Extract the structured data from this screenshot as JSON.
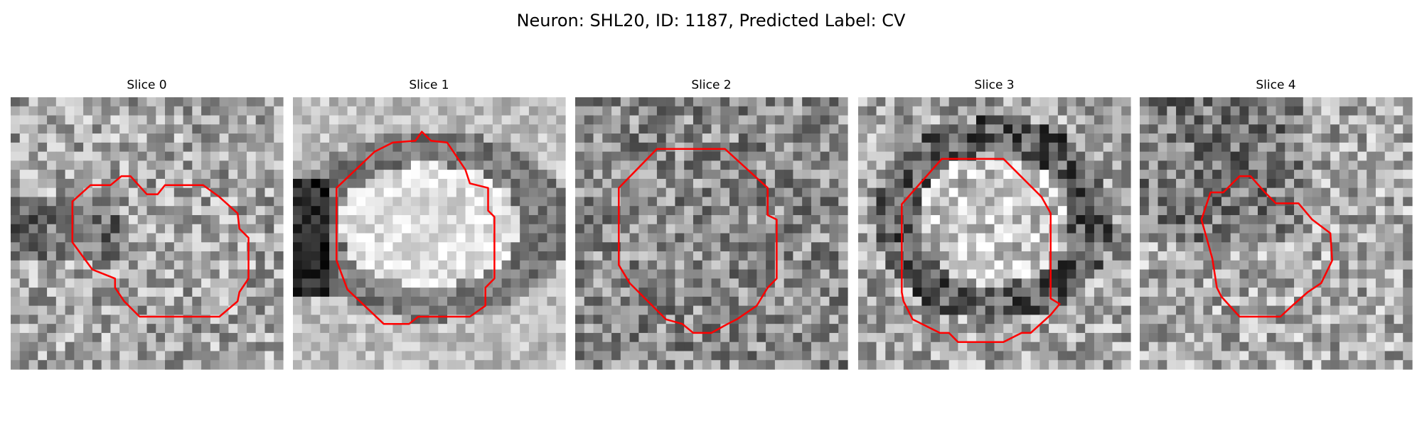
{
  "title": "Neuron: SHL20, ID: 1187, Predicted Label: CV",
  "panels": [
    {
      "title": "Slice 0"
    },
    {
      "title": "Slice 1"
    },
    {
      "title": "Slice 2"
    },
    {
      "title": "Slice 3"
    },
    {
      "title": "Slice 4"
    }
  ]
}
